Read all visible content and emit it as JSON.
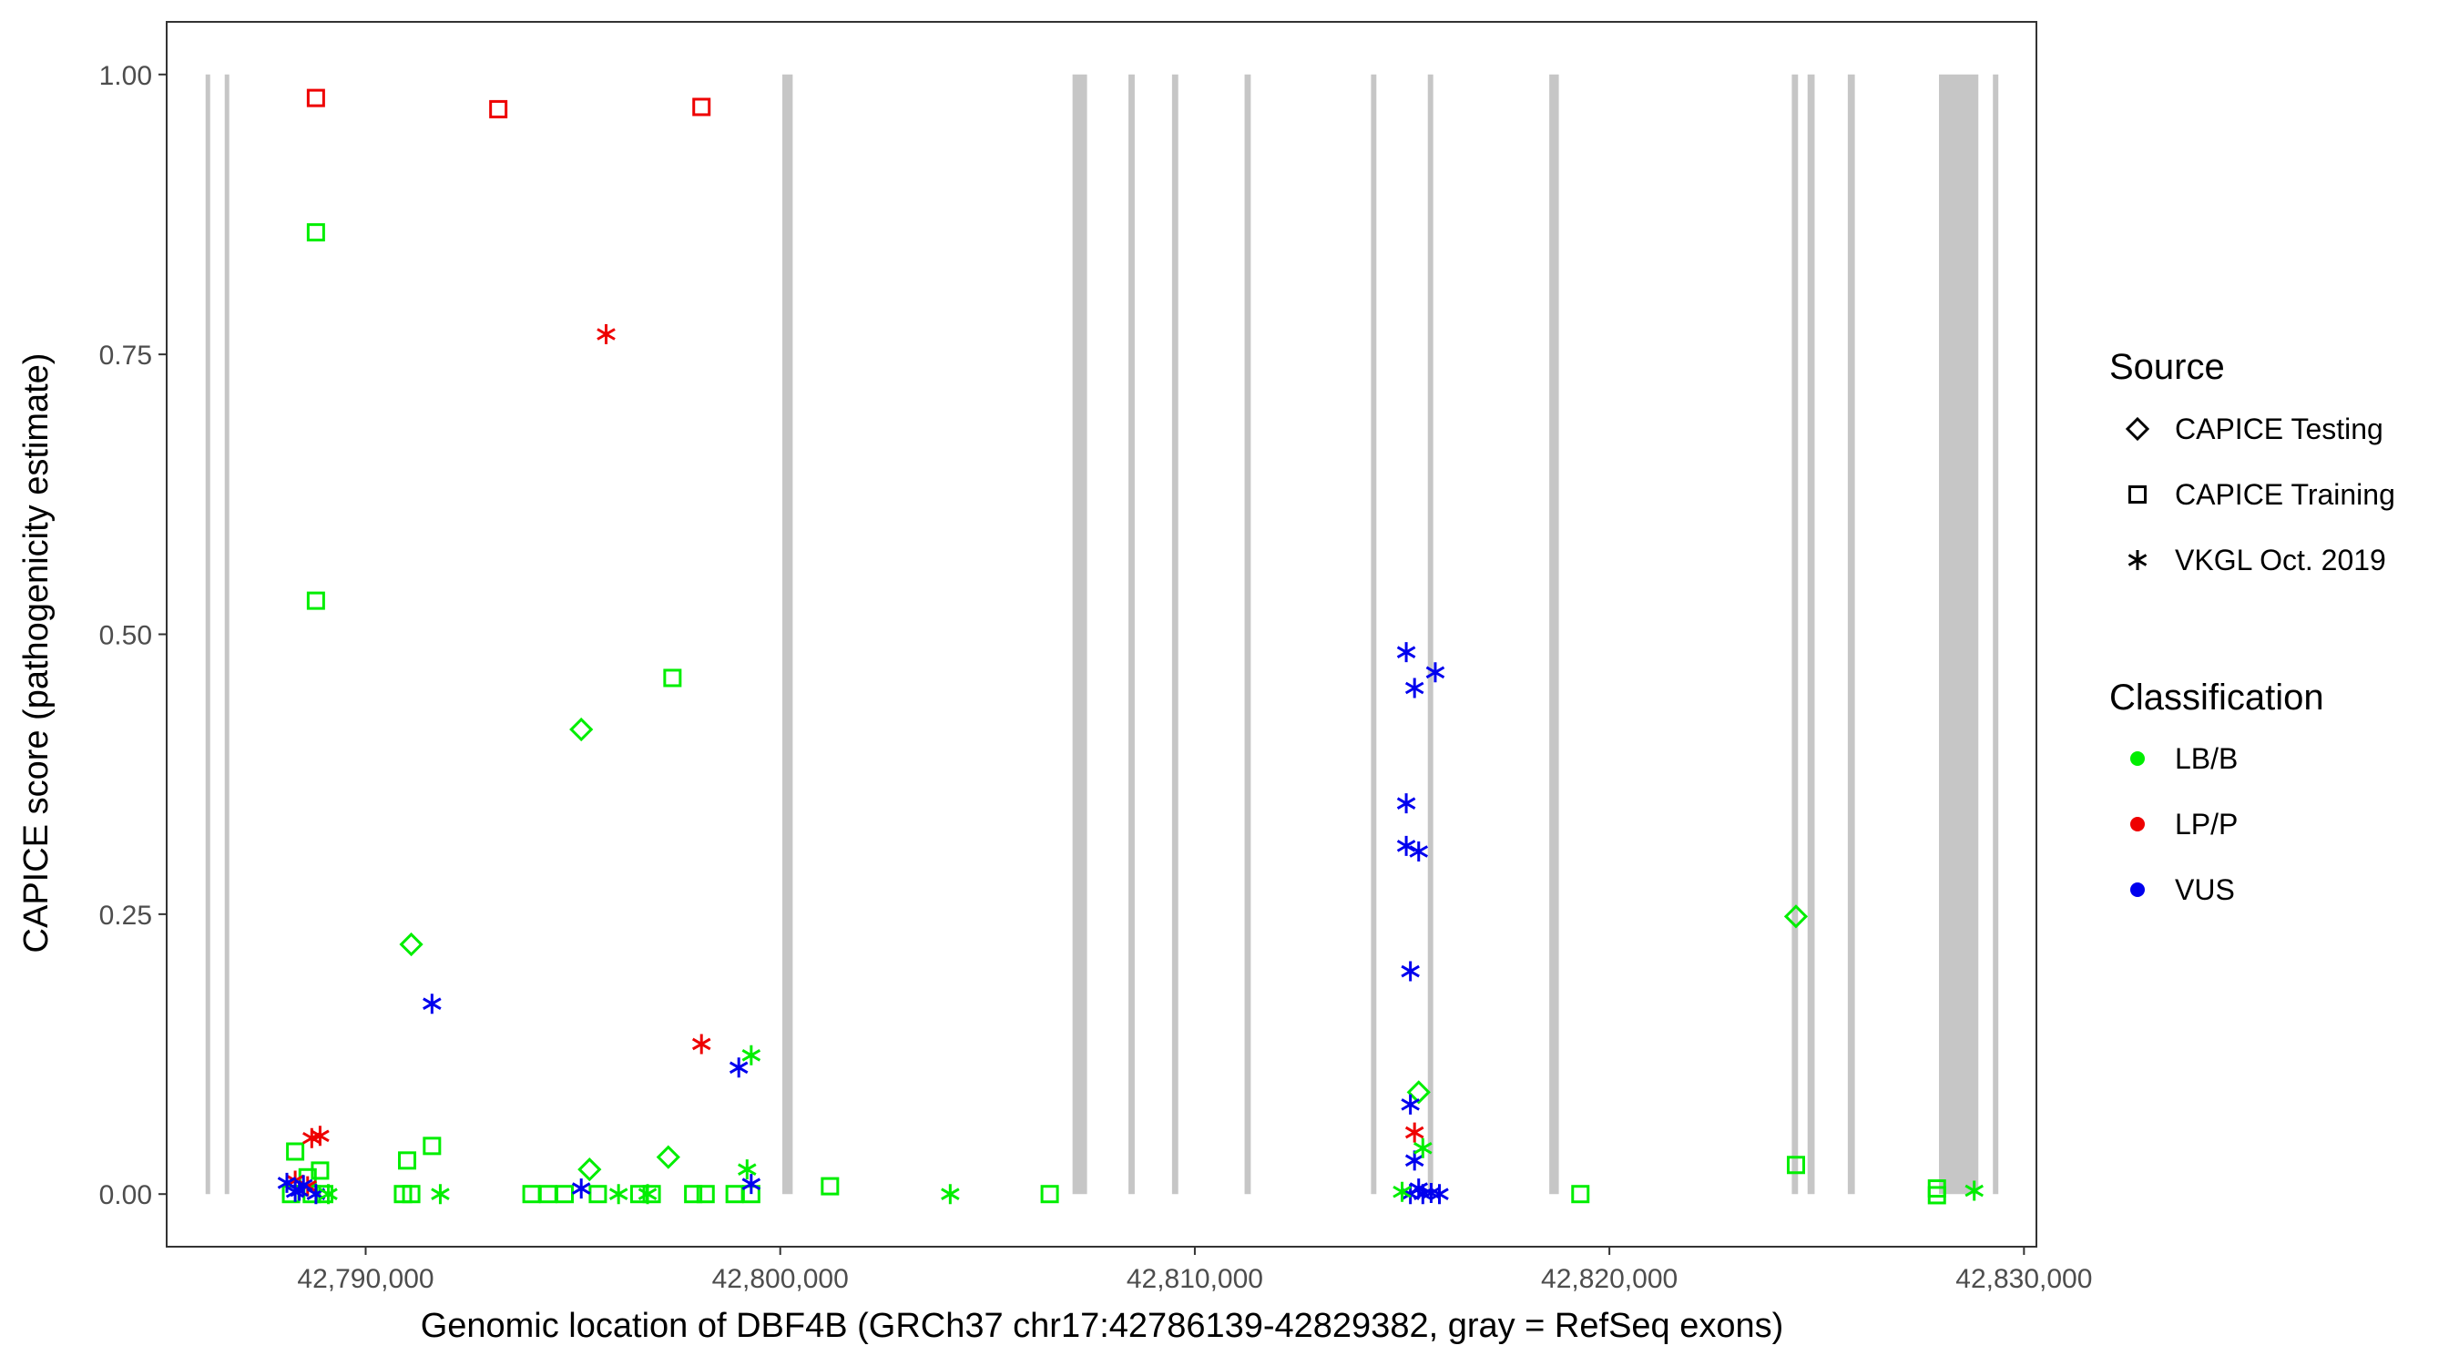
{
  "chart_data": {
    "type": "scatter",
    "title": "",
    "xlabel": "Genomic location of DBF4B (GRCh37 chr17:42786139-42829382, gray = RefSeq exons)",
    "ylabel": "CAPICE score (pathogenicity estimate)",
    "xlim": [
      42785200,
      42830300
    ],
    "ylim": [
      -0.047,
      1.047
    ],
    "x_ticks": [
      42790000,
      42800000,
      42810000,
      42820000,
      42830000
    ],
    "x_tick_labels": [
      "42,790,000",
      "42,800,000",
      "42,810,000",
      "42,820,000",
      "42,830,000"
    ],
    "y_ticks": [
      0,
      0.25,
      0.5,
      0.75,
      1.0
    ],
    "y_tick_labels": [
      "0.00",
      "0.25",
      "0.50",
      "0.75",
      "1.00"
    ],
    "grid": false,
    "exons": [
      [
        42786139,
        42786200
      ],
      [
        42786600,
        42786700
      ],
      [
        42800050,
        42800300
      ],
      [
        42807050,
        42807400
      ],
      [
        42808400,
        42808550
      ],
      [
        42809450,
        42809600
      ],
      [
        42811200,
        42811350
      ],
      [
        42814250,
        42814380
      ],
      [
        42815620,
        42815750
      ],
      [
        42818550,
        42818780
      ],
      [
        42824400,
        42824550
      ],
      [
        42824780,
        42824950
      ],
      [
        42825750,
        42825920
      ],
      [
        42827950,
        42828900
      ],
      [
        42829250,
        42829382
      ]
    ],
    "legend": {
      "placement": "right",
      "source_title": "Source",
      "source_items": [
        {
          "label": "CAPICE Testing",
          "shape": "diamond"
        },
        {
          "label": "CAPICE Training",
          "shape": "square"
        },
        {
          "label": "VKGL Oct. 2019",
          "shape": "asterisk"
        }
      ],
      "class_title": "Classification",
      "class_items": [
        {
          "label": "LB/B",
          "color": "#00ee00"
        },
        {
          "label": "LP/P",
          "color": "#ee0000"
        },
        {
          "label": "VUS",
          "color": "#0000ee"
        }
      ]
    },
    "series": [
      {
        "source": "CAPICE Training",
        "class": "LP/P",
        "points": [
          [
            42788800,
            0.979
          ],
          [
            42793200,
            0.969
          ],
          [
            42798100,
            0.971
          ]
        ]
      },
      {
        "source": "CAPICE Training",
        "class": "LB/B",
        "points": [
          [
            42788800,
            0.859
          ],
          [
            42788800,
            0.53
          ],
          [
            42797400,
            0.461
          ],
          [
            42788300,
            0.038
          ],
          [
            42788900,
            0.021
          ],
          [
            42788600,
            0.015
          ],
          [
            42791000,
            0.03
          ],
          [
            42791600,
            0.043
          ],
          [
            42788200,
            0.0
          ],
          [
            42788700,
            0.0
          ],
          [
            42789000,
            0.0
          ],
          [
            42790900,
            0.0
          ],
          [
            42791100,
            0.0
          ],
          [
            42794000,
            0.0
          ],
          [
            42794400,
            0.0
          ],
          [
            42794800,
            0.0
          ],
          [
            42795600,
            0.0
          ],
          [
            42796600,
            0.0
          ],
          [
            42796900,
            0.0
          ],
          [
            42797900,
            0.0
          ],
          [
            42798200,
            0.0
          ],
          [
            42798900,
            0.0
          ],
          [
            42799300,
            0.0
          ],
          [
            42801200,
            0.007
          ],
          [
            42806500,
            0.0
          ],
          [
            42819300,
            0.0
          ],
          [
            42824500,
            0.026
          ],
          [
            42827900,
            0.005
          ],
          [
            42827900,
            -0.001
          ]
        ]
      },
      {
        "source": "CAPICE Testing",
        "class": "LB/B",
        "points": [
          [
            42795200,
            0.415
          ],
          [
            42791100,
            0.223
          ],
          [
            42797300,
            0.033
          ],
          [
            42795400,
            0.022
          ],
          [
            42815400,
            0.091
          ],
          [
            42824500,
            0.248
          ]
        ]
      },
      {
        "source": "VKGL Oct. 2019",
        "class": "LP/P",
        "points": [
          [
            42795800,
            0.768
          ],
          [
            42798100,
            0.134
          ],
          [
            42788900,
            0.052
          ],
          [
            42788700,
            0.05
          ],
          [
            42788300,
            0.012
          ],
          [
            42788600,
            0.007
          ],
          [
            42815300,
            0.055
          ]
        ]
      },
      {
        "source": "VKGL Oct. 2019",
        "class": "VUS",
        "points": [
          [
            42791600,
            0.17
          ],
          [
            42799000,
            0.113
          ],
          [
            42799300,
            0.009
          ],
          [
            42795200,
            0.005
          ],
          [
            42788100,
            0.01
          ],
          [
            42788300,
            0.002
          ],
          [
            42788500,
            0.008
          ],
          [
            42788800,
            0.0
          ],
          [
            42788400,
            0.003
          ],
          [
            42815100,
            0.484
          ],
          [
            42815800,
            0.466
          ],
          [
            42815300,
            0.452
          ],
          [
            42815100,
            0.349
          ],
          [
            42815100,
            0.311
          ],
          [
            42815400,
            0.306
          ],
          [
            42815200,
            0.199
          ],
          [
            42815200,
            0.08
          ],
          [
            42815300,
            0.03
          ],
          [
            42815400,
            0.005
          ],
          [
            42815700,
            0.001
          ],
          [
            42815200,
            0.0
          ],
          [
            42815500,
            0.0
          ],
          [
            42815900,
            0.0
          ]
        ]
      },
      {
        "source": "VKGL Oct. 2019",
        "class": "LB/B",
        "points": [
          [
            42799300,
            0.124
          ],
          [
            42799200,
            0.022
          ],
          [
            42791800,
            0.0
          ],
          [
            42796100,
            0.0
          ],
          [
            42804100,
            0.0
          ],
          [
            42815000,
            0.002
          ],
          [
            42815500,
            0.041
          ],
          [
            42828800,
            0.003
          ],
          [
            42789100,
            0.0
          ],
          [
            42796800,
            0.0
          ]
        ]
      }
    ]
  }
}
